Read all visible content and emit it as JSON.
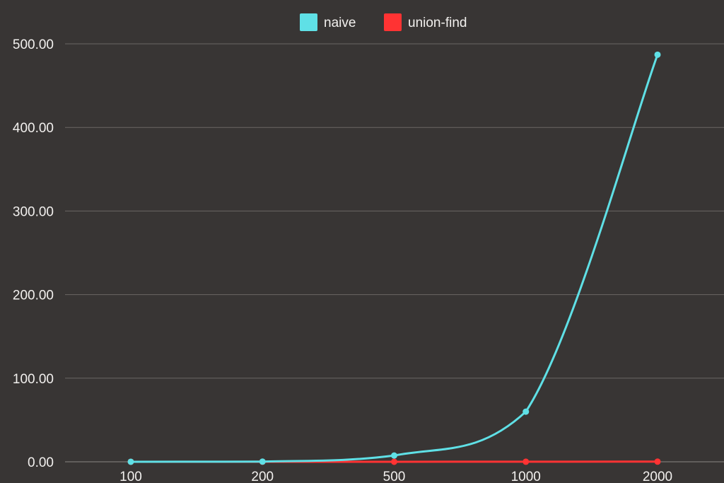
{
  "chart_data": {
    "type": "line",
    "categories": [
      "100",
      "200",
      "500",
      "1000",
      "2000"
    ],
    "series": [
      {
        "name": "naive",
        "color": "#5fe0e6",
        "values": [
          0.03,
          0.2,
          7.5,
          60.0,
          487.0
        ]
      },
      {
        "name": "union-find",
        "color": "#ff3333",
        "values": [
          0.01,
          0.02,
          0.05,
          0.1,
          0.2
        ]
      }
    ],
    "ylim": [
      0,
      500
    ],
    "yticks": [
      "0.00",
      "100.00",
      "200.00",
      "300.00",
      "400.00",
      "500.00"
    ],
    "grid": true,
    "legend_position": "top-center",
    "background": "#383534"
  }
}
